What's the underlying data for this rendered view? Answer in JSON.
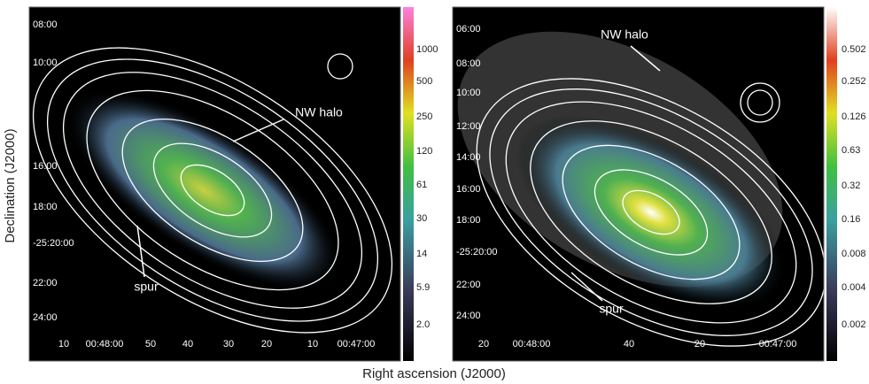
{
  "x_axis_label": "Right ascension (J2000)",
  "y_axis_label": "Declination (J2000)",
  "panels": [
    {
      "dec_labels": [
        "08:00",
        "10:00",
        "16:00",
        "18:00",
        "-25:20:00",
        "22:00",
        "24:00"
      ],
      "ra_labels": [
        "10",
        "00:48:00",
        "50",
        "40",
        "30",
        "20",
        "10",
        "00:47:00"
      ],
      "colorbar_labels": [
        "1000",
        "500",
        "250",
        "120",
        "61",
        "30",
        "14",
        "5.9",
        "2.0"
      ],
      "annotations": [
        "NW halo",
        "spur"
      ]
    },
    {
      "dec_labels": [
        "06:00",
        "08:00",
        "10:00",
        "12:00",
        "14:00",
        "16:00",
        "18:00",
        "-25:20:00",
        "22:00",
        "24:00"
      ],
      "ra_labels": [
        "20",
        "00:48:00",
        "40",
        "20",
        "00:47:00"
      ],
      "colorbar_labels": [
        "0.502",
        "0.252",
        "0.126",
        "0.63",
        "0.32",
        "0.16",
        "0.008",
        "0.004",
        "0.002"
      ],
      "annotations": [
        "NW halo",
        "spur"
      ]
    }
  ]
}
